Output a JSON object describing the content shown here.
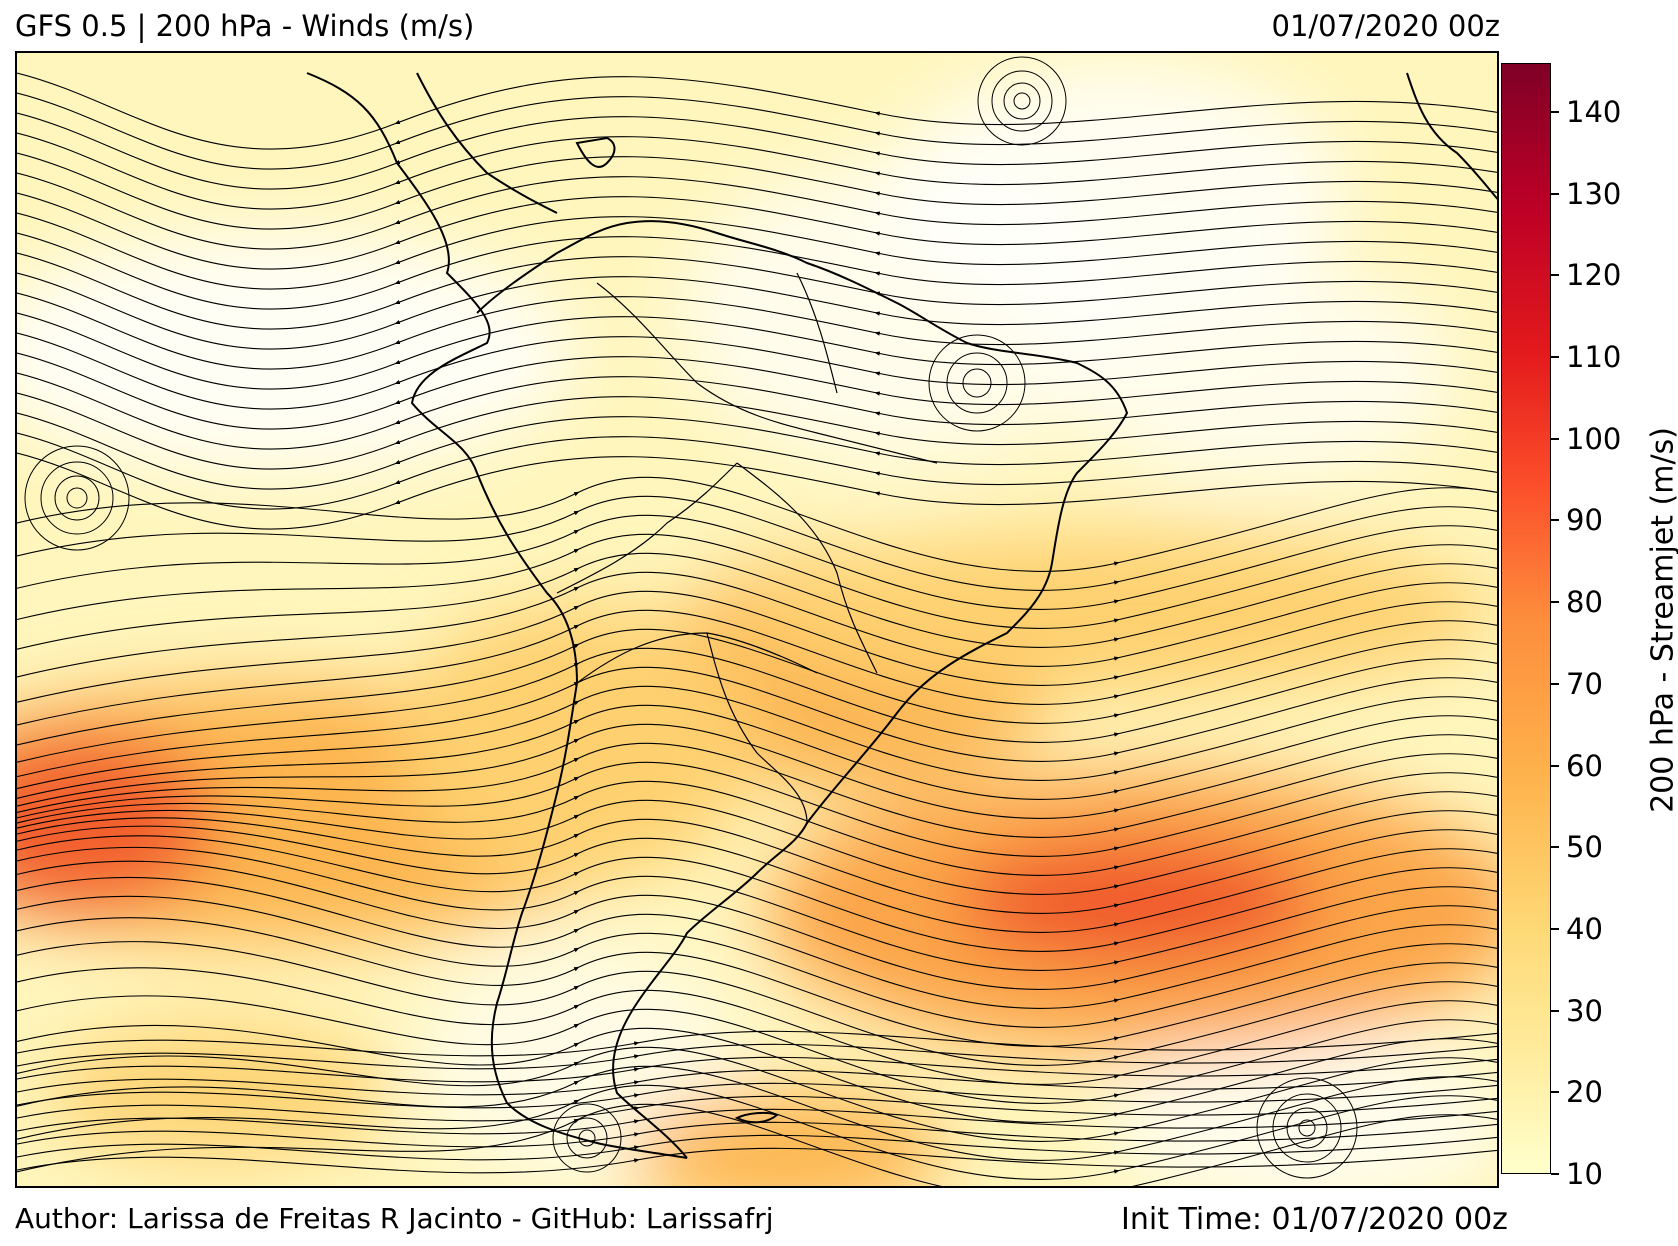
{
  "header": {
    "title": "GFS 0.5 | 200 hPa - Winds (m/s)",
    "valid_time": "01/07/2020 00z"
  },
  "footer": {
    "author": "Author: Larissa de Freitas R Jacinto - GitHub: Larissafrj",
    "init_time": "Init Time: 01/07/2020 00z"
  },
  "map": {
    "region": "South America",
    "colormap": "YlOrRd",
    "features": [
      "wind speed shading",
      "streamlines",
      "coastlines",
      "country borders",
      "state borders"
    ]
  },
  "colorbar": {
    "label": "200 hPa - Streamjet (m/s)",
    "min": 10,
    "max": 146,
    "ticks": [
      "10",
      "20",
      "30",
      "40",
      "50",
      "60",
      "70",
      "80",
      "90",
      "100",
      "110",
      "120",
      "130",
      "140"
    ]
  }
}
